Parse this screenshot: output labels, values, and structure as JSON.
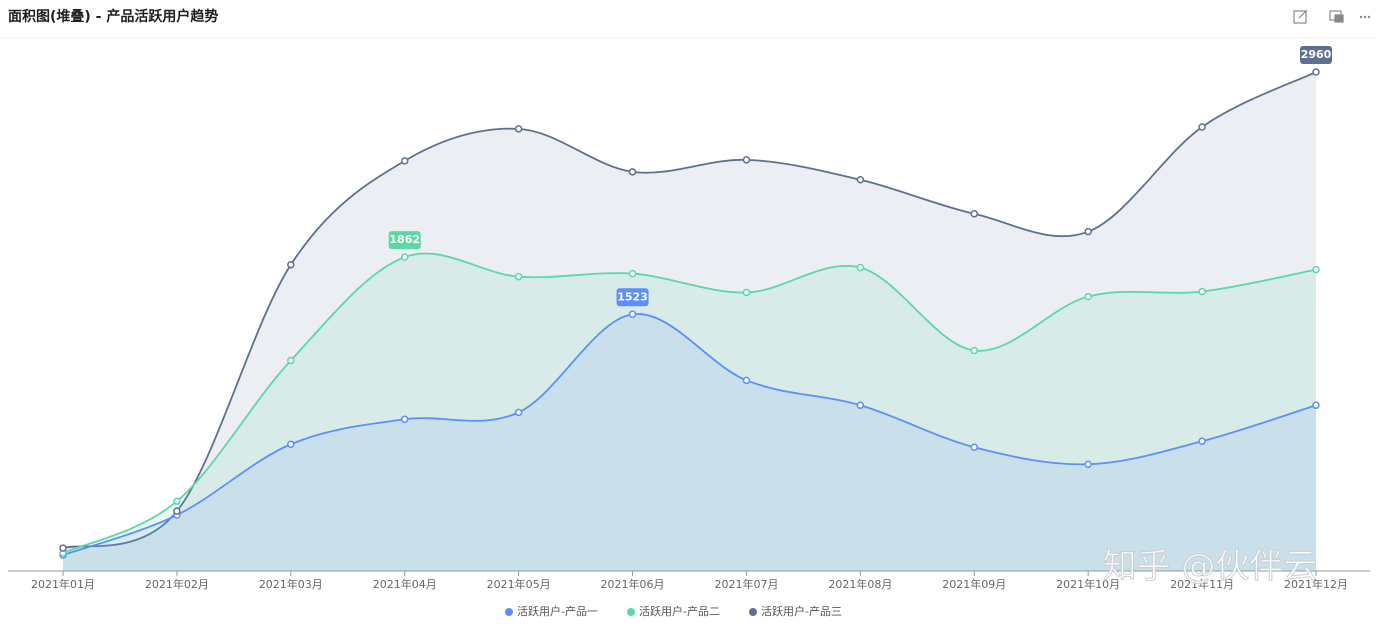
{
  "chart_data": {
    "type": "area",
    "title": "面积图(堆叠) - 产品活跃用户趋势",
    "categories": [
      "2021年01月",
      "2021年02月",
      "2021年03月",
      "2021年04月",
      "2021年05月",
      "2021年06月",
      "2021年07月",
      "2021年08月",
      "2021年09月",
      "2021年10月",
      "2021年11月",
      "2021年12月"
    ],
    "series": [
      {
        "name": "活跃用户-产品一",
        "color": "#5b8ff9",
        "values": [
          95,
          332,
          752,
          900,
          941,
          1523,
          1131,
          983,
          734,
          633,
          770,
          983
        ]
      },
      {
        "name": "活跃用户-产品二",
        "color": "#5ad8a6",
        "values": [
          107,
          414,
          1249,
          1862,
          1746,
          1764,
          1652,
          1800,
          1308,
          1628,
          1658,
          1788
        ]
      },
      {
        "name": "活跃用户-产品三",
        "color": "#5d7092",
        "values": [
          136,
          355,
          1817,
          2433,
          2623,
          2368,
          2439,
          2321,
          2119,
          2013,
          2634,
          2960
        ]
      }
    ],
    "ylim": [
      0,
      3150
    ],
    "show_max_label": true,
    "legend": "bottom",
    "watermark": "知乎 @伙伴云"
  }
}
